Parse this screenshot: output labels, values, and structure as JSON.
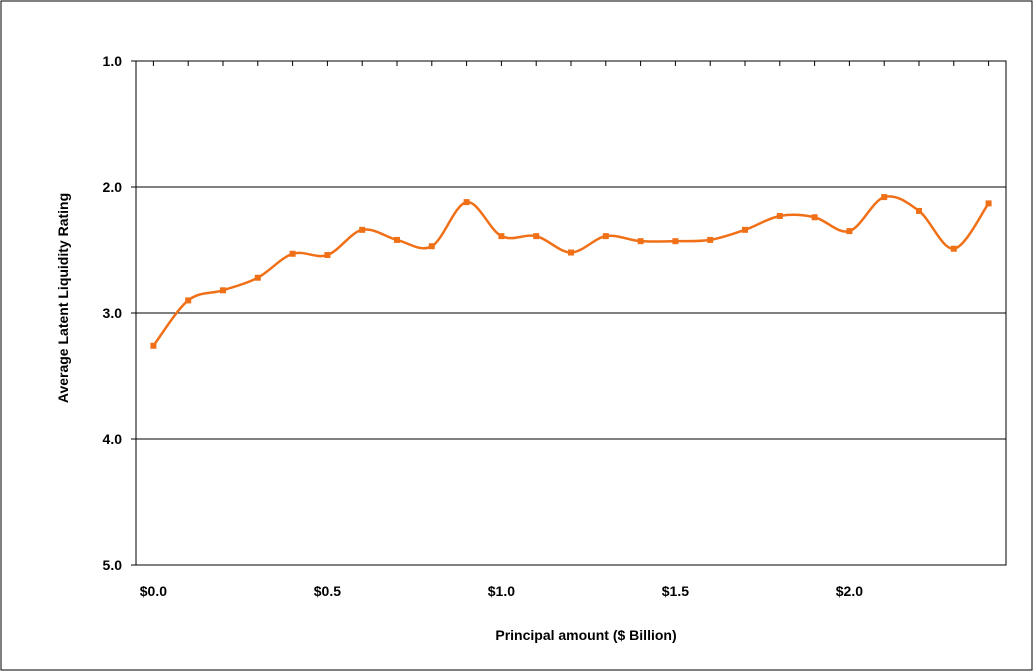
{
  "chart_data": {
    "type": "line",
    "title": "",
    "xlabel": "Principal amount ($ Billion)",
    "ylabel": "Average Latent Liquidity Rating",
    "xlim": [
      -0.05,
      2.45
    ],
    "ylim": [
      1.0,
      5.0
    ],
    "y_reversed": true,
    "grid": "horizontal",
    "legend": "none",
    "y_ticks": [
      {
        "value": 1.0,
        "label": "1.0"
      },
      {
        "value": 2.0,
        "label": "2.0"
      },
      {
        "value": 3.0,
        "label": "3.0"
      },
      {
        "value": 4.0,
        "label": "4.0"
      },
      {
        "value": 5.0,
        "label": "5.0"
      }
    ],
    "x_ticks": [
      {
        "value": 0.0,
        "label": "$0.0"
      },
      {
        "value": 0.5,
        "label": "$0.5"
      },
      {
        "value": 1.0,
        "label": "$1.0"
      },
      {
        "value": 1.5,
        "label": "$1.5"
      },
      {
        "value": 2.0,
        "label": "$2.0"
      }
    ],
    "x_minor_step": 0.1,
    "series": [
      {
        "color": "#f07018",
        "x": [
          0.0,
          0.1,
          0.2,
          0.3,
          0.4,
          0.5,
          0.6,
          0.7,
          0.8,
          0.9,
          1.0,
          1.1,
          1.2,
          1.3,
          1.4,
          1.5,
          1.6,
          1.7,
          1.8,
          1.9,
          2.0,
          2.1,
          2.2,
          2.3,
          2.4
        ],
        "values": [
          3.26,
          2.9,
          2.82,
          2.72,
          2.53,
          2.54,
          2.34,
          2.42,
          2.47,
          2.12,
          2.39,
          2.39,
          2.52,
          2.39,
          2.43,
          2.43,
          2.42,
          2.34,
          2.23,
          2.24,
          2.35,
          2.08,
          2.19,
          2.49,
          2.13
        ]
      }
    ]
  }
}
